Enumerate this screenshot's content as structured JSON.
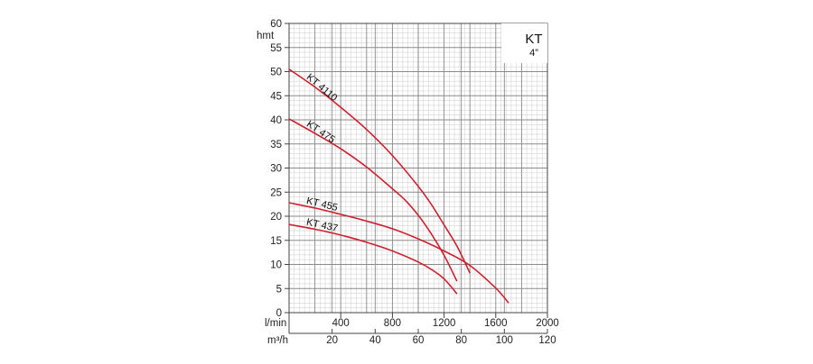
{
  "chart_data": {
    "type": "line",
    "title": "KT",
    "subtitle": "4”",
    "ylabel": "hmt",
    "xlabel_primary": "l/min",
    "xlabel_secondary": "m³/h",
    "ylim": [
      0,
      60
    ],
    "xlim": [
      0,
      2000
    ],
    "x2lim": [
      0,
      120
    ],
    "y_ticks": [
      "0",
      "5",
      "10",
      "15",
      "20",
      "25",
      "30",
      "35",
      "40",
      "45",
      "50",
      "55",
      "60"
    ],
    "x_ticks": [
      "400",
      "800",
      "1200",
      "1600",
      "2000"
    ],
    "x2_ticks": [
      "20",
      "40",
      "60",
      "80",
      "100",
      "120"
    ],
    "grid": true,
    "curve_color": "#d0202e",
    "series": [
      {
        "name": "KT 4110",
        "x": [
          0,
          200,
          400,
          600,
          800,
          1000,
          1100,
          1200,
          1300,
          1400
        ],
        "y": [
          50.5,
          46.8,
          42.6,
          38.0,
          32.6,
          26.2,
          22.5,
          18.2,
          13.8,
          8.2
        ]
      },
      {
        "name": "KT 475",
        "x": [
          0,
          200,
          400,
          600,
          800,
          900,
          1000,
          1100,
          1200,
          1300
        ],
        "y": [
          40.2,
          37.2,
          34.0,
          30.2,
          25.7,
          23.3,
          20.2,
          16.4,
          11.9,
          6.5
        ]
      },
      {
        "name": "KT 455",
        "x": [
          0,
          200,
          400,
          600,
          800,
          1000,
          1200,
          1400,
          1600,
          1700
        ],
        "y": [
          22.8,
          21.7,
          20.4,
          19.0,
          17.4,
          15.3,
          12.8,
          9.8,
          5.1,
          2.0
        ]
      },
      {
        "name": "KT 437",
        "x": [
          0,
          200,
          400,
          600,
          800,
          1000,
          1100,
          1200,
          1300
        ],
        "y": [
          18.3,
          17.3,
          16.1,
          14.6,
          12.8,
          10.5,
          9.0,
          7.0,
          3.9
        ]
      }
    ]
  }
}
